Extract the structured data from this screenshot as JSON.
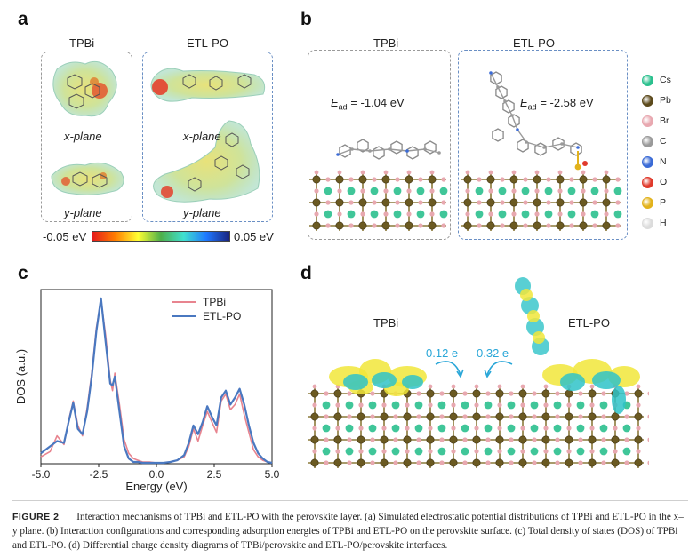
{
  "panels": {
    "a": "a",
    "b": "b",
    "c": "c",
    "d": "d"
  },
  "panel_a": {
    "col1_title": "TPBi",
    "col2_title": "ETL-PO",
    "x_plane_label": "x-plane",
    "y_plane_label": "y-plane",
    "colorbar_min": "-0.05 eV",
    "colorbar_max": "0.05 eV"
  },
  "panel_b": {
    "col1_title": "TPBi",
    "col2_title": "ETL-PO",
    "e_symbol": "E",
    "e_sub": "ad",
    "tpbi_energy": "= -1.04 eV",
    "etlpo_energy": "= -2.58 eV",
    "legend": [
      {
        "label": "Cs",
        "color": "#2bc08e"
      },
      {
        "label": "Pb",
        "color": "#5c4a1c"
      },
      {
        "label": "Br",
        "color": "#e8a8b0"
      },
      {
        "label": "C",
        "color": "#9a9a9a"
      },
      {
        "label": "N",
        "color": "#3b6bd6"
      },
      {
        "label": "O",
        "color": "#e03a2c"
      },
      {
        "label": "P",
        "color": "#e2b21c"
      },
      {
        "label": "H",
        "color": "#dcdcdc"
      }
    ]
  },
  "panel_d": {
    "tpbi_label": "TPBi",
    "etlpo_label": "ETL-PO",
    "tpbi_transfer": "0.12 e",
    "etlpo_transfer": "0.32 e"
  },
  "chart_data": {
    "type": "line",
    "xlabel": "Energy (eV)",
    "ylabel": "DOS (a.u.)",
    "xlim": [
      -5.0,
      5.0
    ],
    "ylim": [
      0,
      1.0
    ],
    "xticks": [
      "-5.0",
      "-2.5",
      "0.0",
      "2.5",
      "5.0"
    ],
    "xtick_values": [
      -5.0,
      -2.5,
      0.0,
      2.5,
      5.0
    ],
    "legend_position": "top-right",
    "series": [
      {
        "name": "TPBi",
        "color": "#e8848f",
        "x": [
          -5.0,
          -4.6,
          -4.3,
          -4.0,
          -3.8,
          -3.6,
          -3.4,
          -3.2,
          -3.0,
          -2.8,
          -2.6,
          -2.4,
          -2.2,
          -2.0,
          -1.9,
          -1.8,
          -1.6,
          -1.4,
          -1.2,
          -1.0,
          -0.8,
          -0.6,
          -0.3,
          0.0,
          0.3,
          0.6,
          0.9,
          1.2,
          1.4,
          1.6,
          1.8,
          2.0,
          2.2,
          2.4,
          2.6,
          2.8,
          3.0,
          3.2,
          3.4,
          3.6,
          3.8,
          4.0,
          4.2,
          4.4,
          4.6,
          4.8,
          5.0
        ],
        "y": [
          0.04,
          0.07,
          0.16,
          0.11,
          0.25,
          0.36,
          0.22,
          0.16,
          0.32,
          0.52,
          0.78,
          0.94,
          0.74,
          0.48,
          0.42,
          0.52,
          0.34,
          0.14,
          0.06,
          0.03,
          0.02,
          0.01,
          0.01,
          0.005,
          0.005,
          0.01,
          0.02,
          0.04,
          0.1,
          0.2,
          0.13,
          0.22,
          0.3,
          0.24,
          0.18,
          0.36,
          0.4,
          0.31,
          0.34,
          0.4,
          0.28,
          0.18,
          0.08,
          0.04,
          0.02,
          0.01,
          0.005
        ]
      },
      {
        "name": "ETL-PO",
        "color": "#4a78c0",
        "x": [
          -5.0,
          -4.6,
          -4.3,
          -4.0,
          -3.8,
          -3.6,
          -3.4,
          -3.2,
          -3.0,
          -2.8,
          -2.6,
          -2.4,
          -2.2,
          -2.0,
          -1.9,
          -1.8,
          -1.6,
          -1.4,
          -1.2,
          -1.0,
          -0.8,
          -0.6,
          -0.3,
          0.0,
          0.3,
          0.6,
          0.9,
          1.2,
          1.4,
          1.6,
          1.8,
          2.0,
          2.2,
          2.4,
          2.6,
          2.8,
          3.0,
          3.2,
          3.4,
          3.6,
          3.8,
          4.0,
          4.2,
          4.4,
          4.6,
          4.8,
          5.0
        ],
        "y": [
          0.06,
          0.1,
          0.13,
          0.12,
          0.24,
          0.35,
          0.2,
          0.17,
          0.3,
          0.5,
          0.76,
          0.95,
          0.7,
          0.46,
          0.45,
          0.5,
          0.3,
          0.1,
          0.03,
          0.01,
          0.01,
          0.005,
          0.005,
          0.005,
          0.005,
          0.01,
          0.02,
          0.05,
          0.12,
          0.22,
          0.17,
          0.24,
          0.33,
          0.27,
          0.22,
          0.38,
          0.42,
          0.34,
          0.38,
          0.43,
          0.34,
          0.22,
          0.12,
          0.06,
          0.03,
          0.01,
          0.005
        ]
      }
    ]
  },
  "caption": {
    "figure": "FIGURE 2",
    "separator": "|",
    "text": "Interaction mechanisms of TPBi and ETL-PO with the perovskite layer. (a) Simulated electrostatic potential distributions of TPBi and ETL-PO in the x–y plane. (b) Interaction configurations and corresponding adsorption energies of TPBi and ETL-PO on the perovskite surface. (c) Total density of states (DOS) of TPBi and ETL-PO. (d) Differential charge density diagrams of TPBi/perovskite and ETL-PO/perovskite interfaces."
  }
}
